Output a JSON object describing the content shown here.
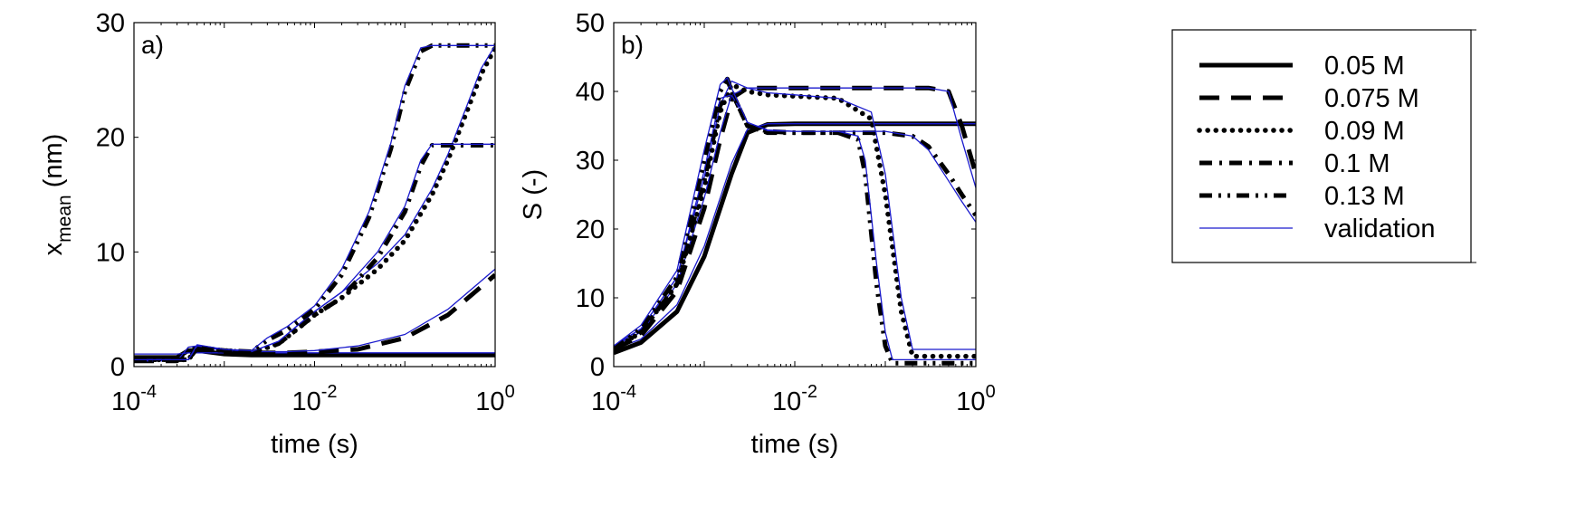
{
  "chart_data": [
    {
      "panel_label": "a)",
      "type": "line",
      "xscale": "log",
      "xlim": [
        0.0001,
        1
      ],
      "ylim": [
        0,
        30
      ],
      "xlabel": "time (s)",
      "ylabel": "x",
      "ylabel_subscript": "mean",
      "ylabel_suffix": " (nm)",
      "xticks": [
        {
          "value": 0.0001,
          "base": "10",
          "exp": "-4"
        },
        {
          "value": 0.01,
          "base": "10",
          "exp": "-2"
        },
        {
          "value": 1,
          "base": "10",
          "exp": "0"
        }
      ],
      "yticks": [
        {
          "value": 0,
          "label": "0"
        },
        {
          "value": 10,
          "label": "10"
        },
        {
          "value": 20,
          "label": "20"
        },
        {
          "value": 30,
          "label": "30"
        }
      ],
      "series": [
        {
          "name": "0.05 M",
          "x": [
            0.0001,
            0.0003,
            0.0004,
            0.0005,
            0.001,
            0.002,
            0.01,
            0.1,
            1
          ],
          "y": [
            0.8,
            0.8,
            1.4,
            1.4,
            1.1,
            1.0,
            1.0,
            1.0,
            1.0
          ],
          "validation": [
            1.1,
            1.1,
            1.2,
            1.2,
            1.2,
            1.2,
            1.2,
            1.2,
            1.2
          ]
        },
        {
          "name": "0.075 M",
          "x": [
            0.0001,
            0.0003,
            0.0004,
            0.0005,
            0.001,
            0.002,
            0.005,
            0.01,
            0.03,
            0.1,
            0.3,
            1
          ],
          "y": [
            0.5,
            0.5,
            1.5,
            1.6,
            1.3,
            1.2,
            1.2,
            1.3,
            1.5,
            2.5,
            4.5,
            8.0
          ],
          "validation": [
            0.5,
            0.5,
            1.7,
            1.8,
            1.4,
            1.3,
            1.3,
            1.4,
            1.8,
            2.8,
            5.0,
            8.5
          ]
        },
        {
          "name": "0.09 M",
          "x": [
            0.0001,
            0.0004,
            0.0005,
            0.001,
            0.002,
            0.004,
            0.007,
            0.01,
            0.02,
            0.05,
            0.1,
            0.2,
            0.3,
            0.5,
            0.7,
            1
          ],
          "y": [
            0.6,
            0.6,
            1.6,
            1.4,
            1.2,
            2.0,
            3.5,
            4.5,
            6.0,
            8.5,
            11.0,
            15.0,
            18.0,
            22.5,
            25.5,
            27.8
          ],
          "validation": [
            0.6,
            0.6,
            1.8,
            1.5,
            1.3,
            2.2,
            3.8,
            4.8,
            6.5,
            9.0,
            11.5,
            15.5,
            18.5,
            23.0,
            26.0,
            28.0
          ]
        },
        {
          "name": "0.1 M",
          "x": [
            0.0001,
            0.0004,
            0.0005,
            0.001,
            0.002,
            0.004,
            0.007,
            0.01,
            0.02,
            0.05,
            0.1,
            0.15,
            0.2,
            1
          ],
          "y": [
            0.6,
            0.6,
            1.6,
            1.4,
            1.2,
            2.0,
            3.5,
            4.5,
            6.0,
            9.5,
            13.5,
            17.5,
            19.3,
            19.3
          ],
          "validation": [
            0.6,
            0.6,
            1.8,
            1.5,
            1.3,
            2.2,
            3.8,
            4.8,
            6.5,
            10.0,
            14.0,
            18.0,
            19.4,
            19.4
          ]
        },
        {
          "name": "0.13 M",
          "x": [
            0.0001,
            0.0004,
            0.0005,
            0.001,
            0.002,
            0.003,
            0.005,
            0.01,
            0.02,
            0.04,
            0.07,
            0.1,
            0.15,
            0.2,
            1
          ],
          "y": [
            0.6,
            0.6,
            1.7,
            1.4,
            1.3,
            2.3,
            3.2,
            5.0,
            8.0,
            13.0,
            19.0,
            24.0,
            27.5,
            28.0,
            28.0
          ],
          "validation": [
            0.6,
            0.6,
            1.9,
            1.5,
            1.4,
            2.5,
            3.5,
            5.3,
            8.5,
            13.5,
            19.5,
            24.5,
            27.8,
            28.0,
            28.0
          ]
        }
      ]
    },
    {
      "panel_label": "b)",
      "type": "line",
      "xscale": "log",
      "xlim": [
        0.0001,
        1
      ],
      "ylim": [
        0,
        50
      ],
      "xlabel": "time (s)",
      "ylabel": "S (-)",
      "xticks": [
        {
          "value": 0.0001,
          "base": "10",
          "exp": "-4"
        },
        {
          "value": 0.01,
          "base": "10",
          "exp": "-2"
        },
        {
          "value": 1,
          "base": "10",
          "exp": "0"
        }
      ],
      "yticks": [
        {
          "value": 0,
          "label": "0"
        },
        {
          "value": 10,
          "label": "10"
        },
        {
          "value": 20,
          "label": "20"
        },
        {
          "value": 30,
          "label": "30"
        },
        {
          "value": 40,
          "label": "40"
        },
        {
          "value": 50,
          "label": "50"
        }
      ],
      "series": [
        {
          "name": "0.05 M",
          "x": [
            0.0001,
            0.0002,
            0.0005,
            0.001,
            0.002,
            0.003,
            0.005,
            0.01,
            0.1,
            0.5,
            1
          ],
          "y": [
            2.0,
            3.5,
            8.0,
            16.0,
            28.0,
            34.0,
            35.2,
            35.3,
            35.3,
            35.3,
            35.3
          ],
          "validation": [
            2.5,
            4.0,
            9.0,
            17.5,
            29.5,
            34.5,
            35.3,
            35.3,
            35.3,
            35.3,
            35.3
          ]
        },
        {
          "name": "0.075 M",
          "x": [
            0.0001,
            0.0002,
            0.0005,
            0.001,
            0.0015,
            0.002,
            0.003,
            0.005,
            0.01,
            0.1,
            0.3,
            0.5,
            0.7,
            1
          ],
          "y": [
            2.5,
            4.5,
            11.0,
            23.0,
            33.0,
            39.0,
            40.5,
            40.5,
            40.5,
            40.5,
            40.5,
            40.0,
            35.0,
            28.0
          ],
          "validation": [
            3.0,
            5.0,
            12.0,
            24.5,
            34.0,
            39.5,
            40.5,
            40.5,
            40.5,
            40.5,
            40.5,
            40.0,
            33.0,
            26.0
          ]
        },
        {
          "name": "0.09 M",
          "x": [
            0.0001,
            0.0002,
            0.0005,
            0.001,
            0.0015,
            0.002,
            0.003,
            0.005,
            0.01,
            0.03,
            0.07,
            0.1,
            0.15,
            0.2,
            0.25,
            1
          ],
          "y": [
            2.5,
            5.0,
            12.0,
            26.0,
            37.0,
            41.0,
            40.0,
            39.5,
            39.3,
            39.0,
            36.0,
            25.0,
            8.0,
            1.5,
            1.5,
            1.5
          ],
          "validation": [
            3.0,
            5.5,
            13.0,
            27.5,
            38.0,
            41.5,
            40.5,
            39.8,
            39.5,
            39.0,
            37.0,
            28.0,
            10.0,
            2.5,
            2.5,
            2.5
          ]
        },
        {
          "name": "0.1 M",
          "x": [
            0.0001,
            0.0002,
            0.0005,
            0.001,
            0.0015,
            0.002,
            0.003,
            0.005,
            0.01,
            0.1,
            0.2,
            0.3,
            0.5,
            0.7,
            1
          ],
          "y": [
            2.5,
            5.0,
            12.0,
            27.0,
            38.0,
            40.0,
            35.0,
            34.2,
            34.0,
            34.0,
            33.5,
            32.0,
            28.0,
            25.0,
            22.0
          ],
          "validation": [
            3.0,
            5.5,
            13.0,
            28.5,
            39.0,
            39.5,
            35.5,
            34.4,
            34.2,
            34.2,
            33.5,
            31.5,
            27.0,
            24.0,
            21.0
          ]
        },
        {
          "name": "0.13 M",
          "x": [
            0.0001,
            0.0002,
            0.0005,
            0.001,
            0.0015,
            0.0018,
            0.002,
            0.003,
            0.005,
            0.01,
            0.03,
            0.05,
            0.06,
            0.08,
            0.1,
            0.12,
            1
          ],
          "y": [
            2.5,
            5.5,
            13.0,
            30.0,
            40.0,
            41.8,
            40.0,
            35.0,
            34.0,
            34.0,
            34.0,
            33.0,
            28.0,
            12.0,
            3.0,
            0.5,
            0.5
          ],
          "validation": [
            3.0,
            6.0,
            14.0,
            31.5,
            41.0,
            42.0,
            40.5,
            35.5,
            34.3,
            34.2,
            34.2,
            33.5,
            30.0,
            15.0,
            5.0,
            1.0,
            1.0
          ]
        }
      ]
    }
  ],
  "legend": {
    "position": "right",
    "entries": [
      {
        "label": "0.05 M",
        "style": "solid"
      },
      {
        "label": "0.075 M",
        "style": "dashed"
      },
      {
        "label": "0.09 M",
        "style": "dotted"
      },
      {
        "label": "0.1 M",
        "style": "dashdot"
      },
      {
        "label": "0.13 M",
        "style": "dashdotdot"
      },
      {
        "label": "validation",
        "style": "thin"
      }
    ]
  },
  "colors": {
    "model": "#000000",
    "validation": "#1a1acd",
    "axes": "#000000"
  }
}
